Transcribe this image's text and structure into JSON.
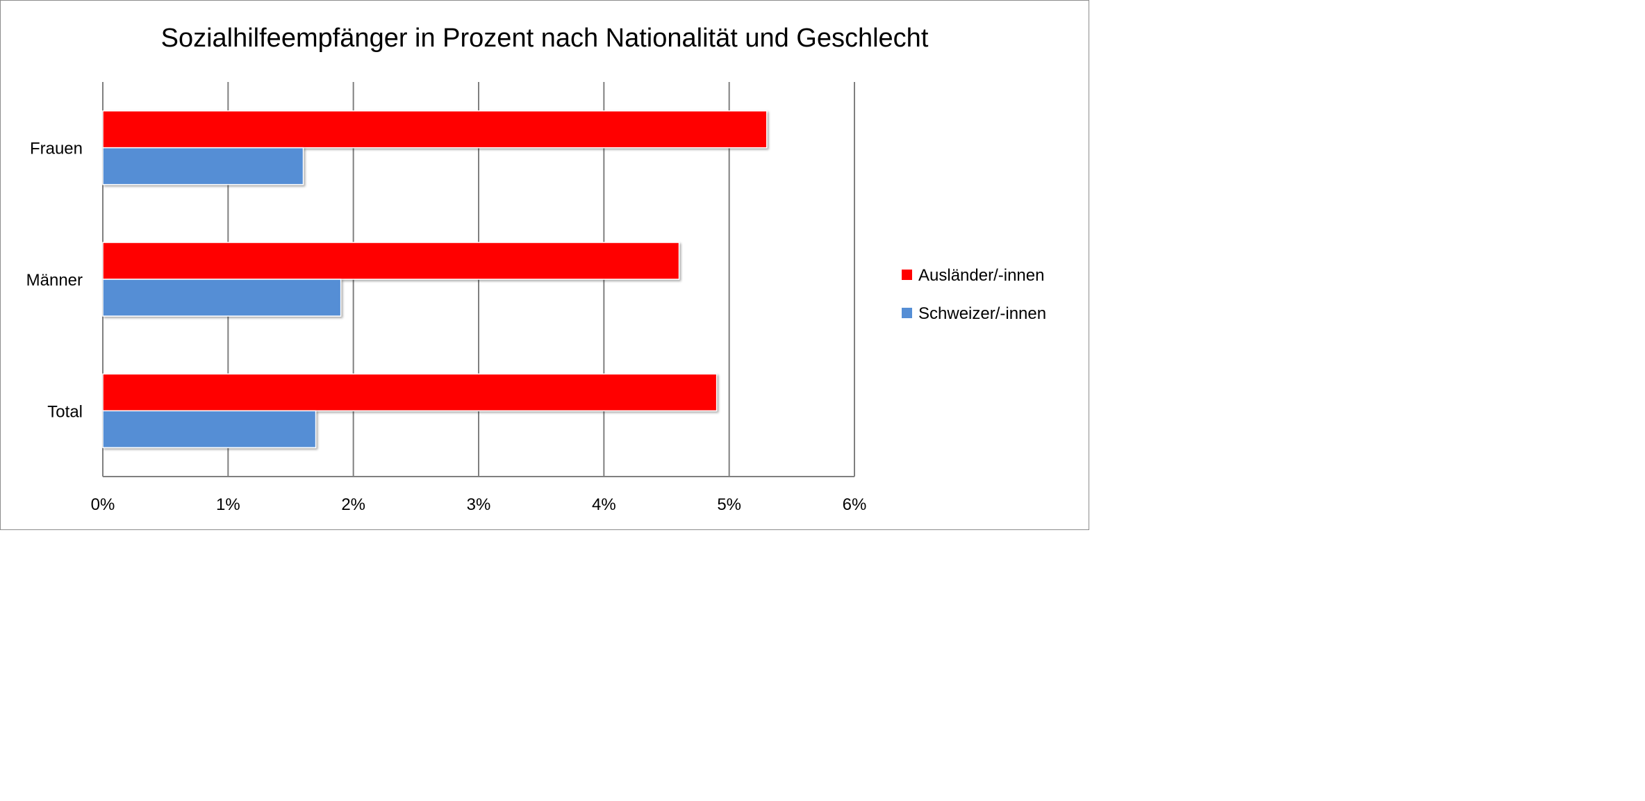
{
  "chart_data": {
    "type": "bar",
    "orientation": "horizontal",
    "title": "Sozialhilfeempfänger in Prozent nach Nationalität und Geschlecht",
    "categories": [
      "Frauen",
      "Männer",
      "Total"
    ],
    "series": [
      {
        "name": "Ausländer/-innen",
        "color": "#ff0000",
        "values": [
          5.3,
          4.6,
          4.9
        ]
      },
      {
        "name": "Schweizer/-innen",
        "color": "#558ed5",
        "values": [
          1.6,
          1.9,
          1.7
        ]
      }
    ],
    "xlim": [
      0,
      6
    ],
    "x_ticks": [
      0,
      1,
      2,
      3,
      4,
      5,
      6
    ],
    "x_tick_labels": [
      "0%",
      "1%",
      "2%",
      "3%",
      "4%",
      "5%",
      "6%"
    ],
    "grid": "vertical",
    "legend_position": "right"
  }
}
